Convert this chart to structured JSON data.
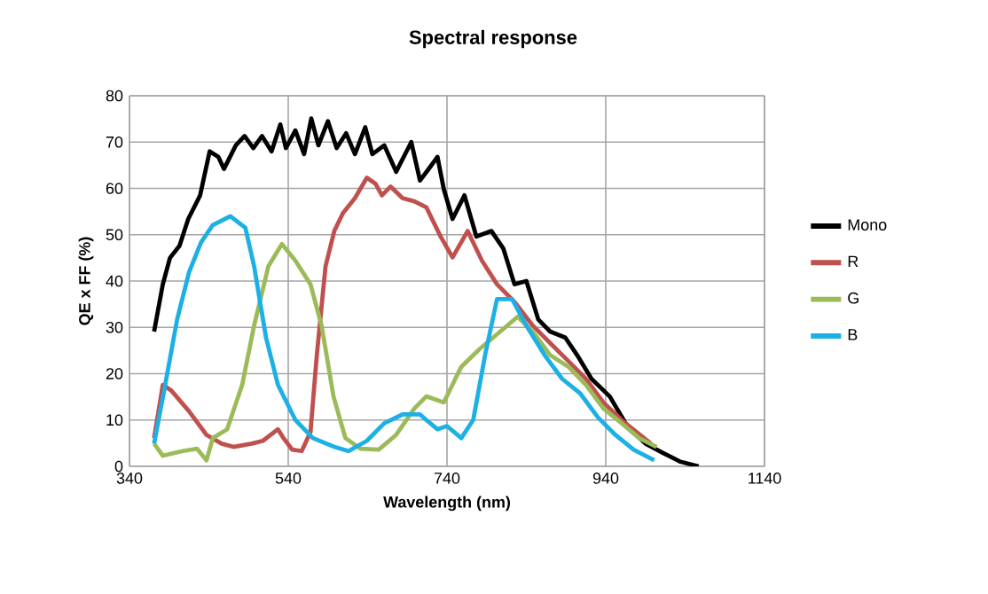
{
  "chart_data": {
    "type": "line",
    "title": "Spectral response",
    "xlabel": "Wavelength (nm)",
    "ylabel": "QE x FF (%)",
    "xlim": [
      340,
      1140
    ],
    "xticks": [
      340,
      540,
      740,
      940,
      1140
    ],
    "ylim": [
      0,
      80
    ],
    "yticks": [
      0,
      10,
      20,
      30,
      40,
      50,
      60,
      70,
      80
    ],
    "grid": true,
    "legend": "right",
    "marker": "none",
    "line_style": "solid",
    "series": [
      {
        "name": "Mono",
        "color": "#000000",
        "x": [
          371,
          382,
          391,
          403,
          414,
          429,
          441,
          452,
          459,
          474,
          485,
          496,
          507,
          519,
          530,
          537,
          549,
          560,
          569,
          578,
          590,
          601,
          613,
          624,
          637,
          646,
          661,
          676,
          695,
          706,
          717,
          728,
          736,
          747,
          762,
          777,
          796,
          811,
          825,
          840,
          855,
          870,
          889,
          904,
          922,
          945,
          967,
          990,
          1012,
          1034,
          1057
        ],
        "values": [
          29.1,
          39.3,
          45,
          47.6,
          53.4,
          58.5,
          68,
          66.8,
          64.2,
          69.3,
          71.3,
          68.7,
          71.3,
          68,
          73.8,
          68.7,
          72.5,
          67.4,
          75.1,
          69.3,
          74.5,
          68.7,
          71.9,
          67.4,
          73.2,
          67.4,
          69.3,
          63.6,
          70,
          61.7,
          64.2,
          66.8,
          59.8,
          53.4,
          58.5,
          49.6,
          50.8,
          47,
          39.3,
          40,
          31.7,
          29.1,
          27.8,
          24,
          18.9,
          15.1,
          8.7,
          4.9,
          2.9,
          1,
          0
        ]
      },
      {
        "name": "R",
        "color": "#c0504d",
        "x": [
          371,
          382,
          393,
          415,
          437,
          456,
          471,
          494,
          508,
          527,
          534,
          545,
          557,
          568,
          576,
          587,
          598,
          609,
          624,
          639,
          650,
          658,
          669,
          684,
          699,
          714,
          732,
          747,
          766,
          784,
          803,
          825,
          848,
          870,
          893,
          915,
          937,
          960,
          997
        ],
        "values": [
          6.1,
          17.6,
          16.3,
          11.9,
          6.8,
          4.9,
          4.2,
          4.9,
          5.5,
          8,
          6.1,
          3.6,
          3.3,
          7.4,
          24,
          43.2,
          50.8,
          54.7,
          57.9,
          62.3,
          61,
          58.5,
          60.4,
          57.9,
          57.2,
          55.9,
          49.6,
          45.1,
          50.8,
          44.4,
          39.3,
          35.5,
          30.4,
          26.6,
          22.7,
          18.9,
          13.8,
          10,
          4.9
        ]
      },
      {
        "name": "G",
        "color": "#9bbb59",
        "x": [
          371,
          382,
          407,
          425,
          437,
          445,
          463,
          482,
          497,
          515,
          532,
          549,
          568,
          582,
          597,
          612,
          631,
          654,
          676,
          699,
          714,
          736,
          758,
          781,
          807,
          829,
          848,
          870,
          893,
          915,
          937,
          960,
          982,
          1004
        ],
        "values": [
          4.9,
          2.3,
          3.3,
          3.8,
          1.3,
          6.1,
          8,
          17.6,
          30.4,
          43.2,
          48,
          44.4,
          39.3,
          30.4,
          15.1,
          6.1,
          3.8,
          3.6,
          6.8,
          12.5,
          15.1,
          13.8,
          21.5,
          25.3,
          29.1,
          32.3,
          29.1,
          24,
          21.5,
          17.6,
          12.5,
          9.3,
          6.1,
          4.2
        ]
      },
      {
        "name": "B",
        "color": "#1cb0e4",
        "x": [
          371,
          385,
          400,
          415,
          430,
          445,
          467,
          486,
          497,
          512,
          527,
          549,
          571,
          598,
          616,
          639,
          661,
          684,
          706,
          714,
          728,
          740,
          758,
          773,
          788,
          803,
          822,
          840,
          863,
          885,
          908,
          930,
          952,
          975,
          1001
        ],
        "values": [
          4.9,
          17.6,
          31.7,
          41.9,
          48.3,
          52.1,
          54,
          51.5,
          43.2,
          27.8,
          17.6,
          10,
          6.1,
          4.2,
          3.3,
          5.5,
          9.3,
          11.2,
          11.2,
          10,
          8,
          8.7,
          6.1,
          10,
          24,
          36.1,
          36.1,
          30.4,
          24,
          18.9,
          15.7,
          10.6,
          6.8,
          3.6,
          1.3
        ]
      }
    ]
  }
}
